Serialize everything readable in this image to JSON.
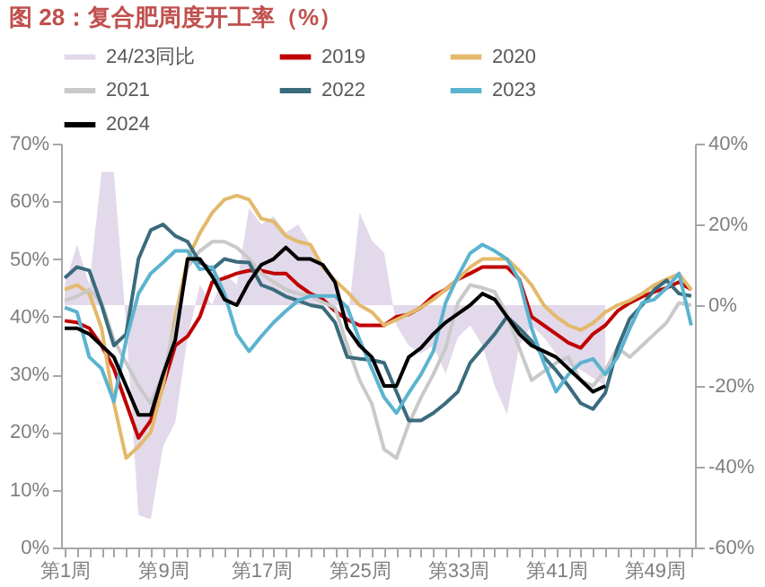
{
  "chart_data": {
    "type": "line",
    "title": "图 28：复合肥周度开工率（%）",
    "categories": [
      "第1周",
      null,
      null,
      null,
      null,
      null,
      null,
      null,
      "第9周",
      null,
      null,
      null,
      null,
      null,
      null,
      null,
      "第17周",
      null,
      null,
      null,
      null,
      null,
      null,
      null,
      "第25周",
      null,
      null,
      null,
      null,
      null,
      null,
      null,
      "第33周",
      null,
      null,
      null,
      null,
      null,
      null,
      null,
      "第41周",
      null,
      null,
      null,
      null,
      null,
      null,
      null,
      "第49周",
      null,
      null,
      null
    ],
    "ylim": [
      0,
      70
    ],
    "yticks": [
      {
        "value": 0,
        "label": "0%"
      },
      {
        "value": 10,
        "label": "10%"
      },
      {
        "value": 20,
        "label": "20%"
      },
      {
        "value": 30,
        "label": "30%"
      },
      {
        "value": 40,
        "label": "40%"
      },
      {
        "value": 50,
        "label": "50%"
      },
      {
        "value": 60,
        "label": "60%"
      },
      {
        "value": 70,
        "label": "70%"
      }
    ],
    "y2lim": [
      -60,
      40
    ],
    "y2ticks": [
      {
        "value": -60,
        "label": "-60%"
      },
      {
        "value": -40,
        "label": "-40%"
      },
      {
        "value": -20,
        "label": "-20%"
      },
      {
        "value": 0,
        "label": "0%"
      },
      {
        "value": 20,
        "label": "20%"
      },
      {
        "value": 40,
        "label": "40%"
      }
    ],
    "grid": false,
    "legend": "top",
    "series": [
      {
        "name": "24/23同比",
        "type": "area",
        "axis": "y2",
        "color": "#e2d9ea",
        "values": [
          5,
          15,
          5,
          33,
          33,
          -5,
          -52,
          -53,
          -35,
          -29,
          -8,
          5,
          0,
          8,
          5,
          24,
          20,
          22,
          18,
          20,
          15,
          10,
          5,
          -5,
          23,
          16,
          13,
          -5,
          -10,
          -12,
          -10,
          -17,
          -8,
          -5,
          -10,
          -20,
          -27,
          -10,
          -5,
          -8,
          -12,
          -15,
          -16,
          -18,
          -20,
          null,
          null,
          null,
          null,
          null,
          null,
          null
        ]
      },
      {
        "name": "2019",
        "color": "#c00000",
        "values": [
          39.3,
          39,
          38,
          35,
          31,
          25,
          19,
          22,
          28,
          35,
          36.6,
          40,
          46,
          46.7,
          47.5,
          48,
          48,
          47.5,
          47.5,
          45.5,
          44,
          43,
          41,
          39.5,
          38.5,
          38.5,
          38.5,
          40,
          40.4,
          41.6,
          43.6,
          44.7,
          46.5,
          47.5,
          48.6,
          48.6,
          48.6,
          46.5,
          40,
          38.5,
          37,
          35.5,
          34.6,
          37,
          38.5,
          41,
          42.4,
          43.5,
          44.3,
          45,
          46,
          44.7
        ]
      },
      {
        "name": "2020",
        "color": "#e3b96b",
        "values": [
          44.7,
          45.5,
          44,
          38,
          25,
          15.5,
          17.5,
          20,
          28,
          40,
          50,
          54.5,
          58,
          60.3,
          61,
          60.3,
          57,
          56.5,
          54,
          53,
          52.5,
          48.6,
          46.3,
          44.3,
          42,
          40.8,
          38.5,
          39.5,
          40.5,
          41.6,
          43,
          44.7,
          46.5,
          48.6,
          50,
          50,
          50,
          48,
          45.5,
          42,
          40,
          38.5,
          37.7,
          38.9,
          40.8,
          42,
          42.8,
          44,
          45.5,
          46.5,
          47.4,
          44.7
        ]
      },
      {
        "name": "2021",
        "color": "#c9c9c9",
        "values": [
          42.8,
          43.5,
          44.7,
          42.4,
          36,
          32,
          28,
          25,
          30,
          38.5,
          48.6,
          51.4,
          53,
          53,
          52,
          50,
          47.5,
          46,
          44.7,
          44,
          43.6,
          42.5,
          41.6,
          35,
          29,
          24.9,
          17,
          15.5,
          21.4,
          26,
          30,
          34.6,
          42.4,
          45.5,
          45,
          44.3,
          40.4,
          34.6,
          29,
          30.5,
          32,
          33,
          29,
          28,
          30.7,
          34.6,
          33,
          35,
          37,
          39,
          42.4,
          42
        ]
      },
      {
        "name": "2022",
        "color": "#3a6b7c",
        "values": [
          46.7,
          48.6,
          48,
          42,
          35,
          37,
          50,
          55,
          56,
          54,
          53,
          49.4,
          48.2,
          50,
          49.5,
          49.4,
          45.5,
          44.7,
          43.5,
          42.8,
          42,
          41.6,
          39,
          33,
          32.7,
          32.5,
          32,
          27,
          22,
          22,
          23.3,
          25,
          27,
          32,
          34.5,
          37,
          40,
          38,
          35.8,
          33,
          30.7,
          28,
          25,
          24,
          26.8,
          34.6,
          39.7,
          42,
          44.7,
          46.3,
          44,
          43.6
        ]
      },
      {
        "name": "2023",
        "color": "#5bb3cf",
        "values": [
          41.6,
          40.8,
          33,
          31,
          25.3,
          36,
          44,
          47.5,
          49.4,
          51.4,
          51.4,
          48.2,
          48.6,
          44,
          37,
          34,
          36.6,
          39,
          41,
          42.8,
          43.6,
          43.6,
          43.6,
          41.6,
          36,
          31,
          26,
          23.3,
          26.8,
          30,
          34,
          42.4,
          47,
          51,
          52.5,
          51.4,
          50,
          46.3,
          38,
          32,
          27,
          30,
          32,
          32.7,
          30,
          33,
          38,
          42.4,
          43,
          45,
          47.5,
          38.5
        ]
      },
      {
        "name": "2024",
        "color": "#000000",
        "values": [
          38,
          38,
          37,
          35,
          33,
          28,
          23,
          23,
          30,
          36,
          50,
          50,
          47,
          43,
          42,
          46,
          49,
          50,
          52,
          50,
          50,
          49,
          46,
          38,
          35,
          33,
          28,
          28,
          33,
          34.6,
          37,
          39,
          40.5,
          42,
          44,
          43,
          40,
          37,
          35,
          34,
          33,
          31,
          29,
          27,
          28,
          null,
          null,
          null,
          null,
          null,
          null,
          null
        ]
      }
    ]
  }
}
